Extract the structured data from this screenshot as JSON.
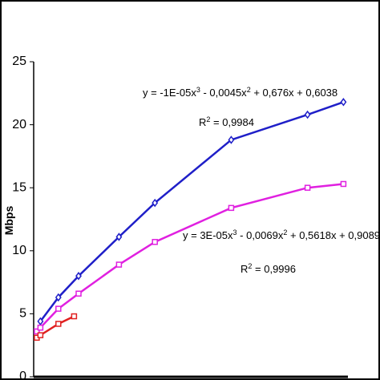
{
  "chart_data": {
    "type": "line",
    "y_label": "Mbps",
    "xlim": [
      0,
      70
    ],
    "ylim": [
      0,
      25
    ],
    "yticks": [
      0,
      5,
      10,
      15,
      20,
      25
    ],
    "series": [
      {
        "color": "#1f1fc8",
        "marker": "diamond",
        "x": [
          1.5,
          5.5,
          10,
          19,
          27,
          44,
          61,
          69
        ],
        "values": [
          4.4,
          6.3,
          8.0,
          11.1,
          13.8,
          18.8,
          20.8,
          21.8
        ]
      },
      {
        "color": "#e020e0",
        "marker": "square",
        "x": [
          0.7,
          1.5,
          5.5,
          10,
          19,
          27,
          44,
          61,
          69
        ],
        "values": [
          3.6,
          3.9,
          5.4,
          6.6,
          8.9,
          10.7,
          13.4,
          15.0,
          15.3
        ]
      },
      {
        "color": "#e02020",
        "marker": "square",
        "x": [
          0.7,
          1.5,
          5.5,
          9
        ],
        "values": [
          3.1,
          3.3,
          4.2,
          4.8
        ]
      }
    ],
    "annotations": [
      {
        "parts": [
          "y = -1E-05x",
          "3",
          " - 0,0045x",
          "2",
          " + 0,676x + 0,6038"
        ]
      },
      {
        "parts": [
          "R",
          "2",
          " = 0,9984"
        ]
      },
      {
        "parts": [
          "y = 3E-05x",
          "3",
          " - 0,0069x",
          "2",
          " + 0,5618x + 0,9089"
        ]
      },
      {
        "parts": [
          "R",
          "2",
          " = 0,9996"
        ]
      }
    ]
  }
}
